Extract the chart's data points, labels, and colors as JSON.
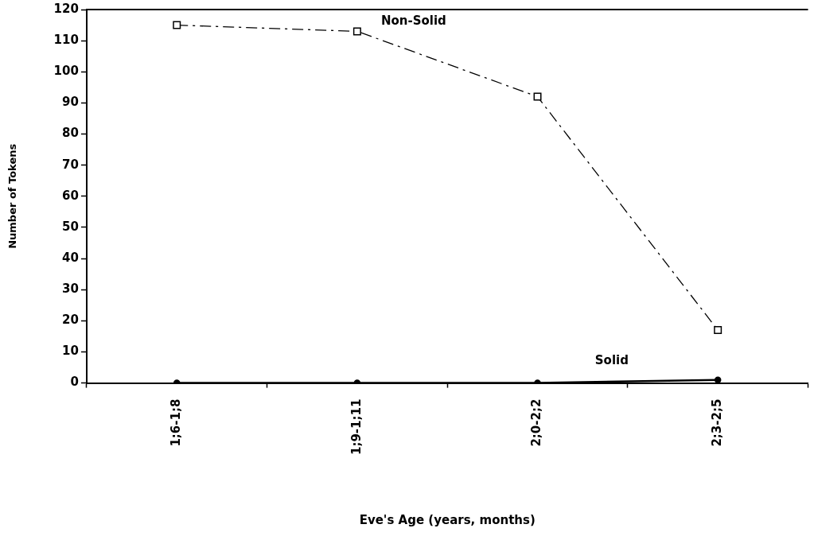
{
  "chart_data": {
    "type": "line",
    "xlabel": "Eve's Age (years, months)",
    "ylabel": "Number of Tokens",
    "categories": [
      "1;6-1;8",
      "1;9-1;11",
      "2;0-2;2",
      "2;3-2;5"
    ],
    "series": [
      {
        "name": "Non-Solid",
        "color": "#000000",
        "values": [
          115,
          113,
          92,
          17
        ],
        "marker": "square",
        "line_style": "dashed"
      },
      {
        "name": "Solid",
        "color": "#000000",
        "values": [
          0,
          0,
          0,
          1
        ],
        "marker": "circle",
        "line_style": "solid"
      }
    ],
    "ylim": [
      0,
      120
    ],
    "yticks": [
      0,
      10,
      20,
      30,
      40,
      50,
      60,
      70,
      80,
      90,
      100,
      110,
      120
    ],
    "grid": false,
    "legend": false
  }
}
